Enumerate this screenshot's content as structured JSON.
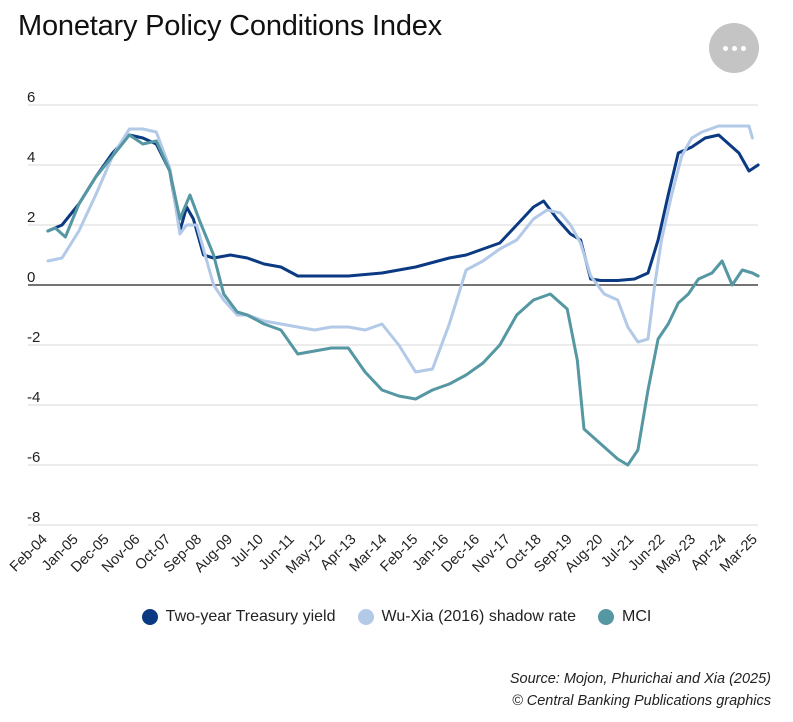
{
  "chart_data": {
    "type": "line",
    "title": "Monetary Policy Conditions Index",
    "xlabel": "",
    "ylabel": "",
    "ylim": [
      -8,
      6
    ],
    "yticks": [
      6,
      4,
      2,
      0,
      -2,
      -4,
      -6,
      -8
    ],
    "x_start": 2004.083,
    "x_end": 2025.167,
    "xtick_labels": [
      "Feb-04",
      "Jan-05",
      "Dec-05",
      "Nov-06",
      "Oct-07",
      "Sep-08",
      "Aug-09",
      "Jul-10",
      "Jun-11",
      "May-12",
      "Apr-13",
      "Mar-14",
      "Feb-15",
      "Jan-16",
      "Dec-16",
      "Nov-17",
      "Oct-18",
      "Sep-19",
      "Aug-20",
      "Jul-21",
      "Jun-22",
      "May-23",
      "Apr-24",
      "Mar-25"
    ],
    "series": [
      {
        "name": "Two-year Treasury yield",
        "color": "#0b3a82",
        "x": [
          2004.08,
          2004.5,
          2005.0,
          2005.5,
          2006.0,
          2006.5,
          2006.9,
          2007.3,
          2007.7,
          2008.0,
          2008.2,
          2008.4,
          2008.7,
          2009.0,
          2009.5,
          2010.0,
          2010.5,
          2011.0,
          2011.5,
          2012.0,
          2013.0,
          2014.0,
          2015.0,
          2016.0,
          2016.5,
          2017.0,
          2017.5,
          2018.0,
          2018.5,
          2018.8,
          2019.2,
          2019.6,
          2019.9,
          2020.2,
          2020.5,
          2021.0,
          2021.5,
          2021.9,
          2022.2,
          2022.5,
          2022.8,
          2023.2,
          2023.6,
          2024.0,
          2024.3,
          2024.6,
          2024.9,
          2025.17
        ],
        "values": [
          1.8,
          2.0,
          2.7,
          3.6,
          4.4,
          5.0,
          4.9,
          4.7,
          3.8,
          1.8,
          2.6,
          2.2,
          1.0,
          0.9,
          1.0,
          0.9,
          0.7,
          0.6,
          0.3,
          0.3,
          0.3,
          0.4,
          0.6,
          0.9,
          1.0,
          1.2,
          1.4,
          2.0,
          2.6,
          2.8,
          2.2,
          1.7,
          1.5,
          0.2,
          0.15,
          0.15,
          0.2,
          0.4,
          1.5,
          3.0,
          4.4,
          4.6,
          4.9,
          5.0,
          4.7,
          4.4,
          3.8,
          4.0
        ]
      },
      {
        "name": "Wu-Xia (2016) shadow rate",
        "color": "#b2c9e8",
        "x": [
          2004.08,
          2004.5,
          2005.0,
          2005.5,
          2006.0,
          2006.5,
          2006.9,
          2007.3,
          2007.7,
          2008.0,
          2008.2,
          2008.5,
          2008.8,
          2009.0,
          2009.3,
          2009.7,
          2010.0,
          2010.5,
          2011.0,
          2011.5,
          2012.0,
          2012.5,
          2013.0,
          2013.5,
          2014.0,
          2014.5,
          2015.0,
          2015.5,
          2016.0,
          2016.5,
          2017.0,
          2017.5,
          2018.0,
          2018.5,
          2018.9,
          2019.3,
          2019.6,
          2019.9,
          2020.2,
          2020.6,
          2021.0,
          2021.3,
          2021.6,
          2021.9,
          2022.1,
          2022.3,
          2022.6,
          2022.9,
          2023.2,
          2023.5,
          2024.0,
          2024.5,
          2024.9,
          2025.0
        ],
        "values": [
          0.8,
          0.9,
          1.8,
          3.0,
          4.3,
          5.2,
          5.2,
          5.1,
          3.9,
          1.7,
          2.0,
          2.0,
          0.8,
          0.0,
          -0.5,
          -1.0,
          -1.0,
          -1.2,
          -1.3,
          -1.4,
          -1.5,
          -1.4,
          -1.4,
          -1.5,
          -1.3,
          -2.0,
          -2.9,
          -2.8,
          -1.3,
          0.5,
          0.8,
          1.2,
          1.5,
          2.2,
          2.5,
          2.4,
          2.0,
          1.4,
          0.3,
          -0.3,
          -0.5,
          -1.4,
          -1.9,
          -1.8,
          0.0,
          1.5,
          3.0,
          4.3,
          4.9,
          5.1,
          5.3,
          5.3,
          5.3,
          4.9
        ]
      },
      {
        "name": "MCI",
        "color": "#5597a2",
        "x": [
          2004.08,
          2004.3,
          2004.6,
          2005.0,
          2005.5,
          2006.0,
          2006.5,
          2006.9,
          2007.3,
          2007.7,
          2008.0,
          2008.3,
          2008.6,
          2009.0,
          2009.3,
          2009.7,
          2010.0,
          2010.5,
          2011.0,
          2011.5,
          2012.0,
          2012.5,
          2013.0,
          2013.5,
          2014.0,
          2014.5,
          2015.0,
          2015.5,
          2016.0,
          2016.5,
          2017.0,
          2017.5,
          2018.0,
          2018.5,
          2019.0,
          2019.5,
          2019.8,
          2020.0,
          2020.3,
          2020.6,
          2021.0,
          2021.3,
          2021.6,
          2021.9,
          2022.2,
          2022.5,
          2022.8,
          2023.1,
          2023.4,
          2023.8,
          2024.1,
          2024.4,
          2024.7,
          2025.0,
          2025.17
        ],
        "values": [
          1.8,
          1.9,
          1.6,
          2.7,
          3.6,
          4.3,
          5.0,
          4.7,
          4.8,
          3.8,
          2.2,
          3.0,
          2.1,
          1.0,
          -0.3,
          -0.9,
          -1.0,
          -1.3,
          -1.5,
          -2.3,
          -2.2,
          -2.1,
          -2.1,
          -2.9,
          -3.5,
          -3.7,
          -3.8,
          -3.5,
          -3.3,
          -3.0,
          -2.6,
          -2.0,
          -1.0,
          -0.5,
          -0.3,
          -0.8,
          -2.5,
          -4.8,
          -5.1,
          -5.4,
          -5.8,
          -6.0,
          -5.5,
          -3.5,
          -1.8,
          -1.3,
          -0.6,
          -0.3,
          0.2,
          0.4,
          0.8,
          0.0,
          0.5,
          0.4,
          0.3
        ]
      }
    ]
  },
  "header": {
    "title": "Monetary Policy Conditions Index"
  },
  "legend": [
    {
      "label": "Two-year Treasury yield",
      "color": "#0b3a82"
    },
    {
      "label": "Wu-Xia (2016) shadow rate",
      "color": "#b2c9e8"
    },
    {
      "label": "MCI",
      "color": "#5597a2"
    }
  ],
  "footer": {
    "source": "Source: Mojon, Phurichai and Xia (2025)",
    "credit": "© Central Banking Publications graphics"
  },
  "menu": {
    "icon": "more-horizontal-icon"
  }
}
